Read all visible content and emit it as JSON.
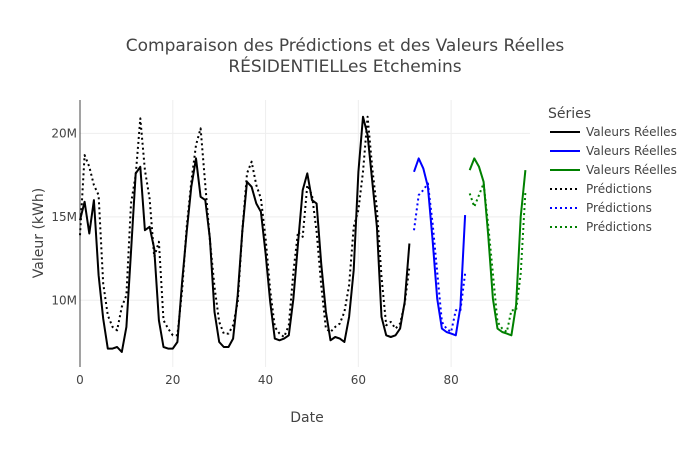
{
  "chart_data": {
    "type": "line",
    "title_line1": "Comparaison des Prédictions et des Valeurs Réelles",
    "title_line2": "RÉSIDENTIELLes Etchemins",
    "xlabel": "Date",
    "ylabel": "Valeur (kWh)",
    "xlim": [
      0,
      97
    ],
    "ylim": [
      6000000,
      22000000
    ],
    "x_ticks": [
      0,
      20,
      40,
      60,
      80
    ],
    "x_tick_labels": [
      "0",
      "20",
      "40",
      "60",
      "80"
    ],
    "y_ticks": [
      10000000,
      15000000,
      20000000
    ],
    "y_tick_labels": [
      "10M",
      "15M",
      "20M"
    ],
    "grid": true,
    "legend_title": "Séries",
    "legend_position": "right",
    "series": [
      {
        "name": "Valeurs Réelles",
        "color": "#000000",
        "dash": "solid",
        "x_start": 0,
        "values": [
          14800000,
          15900000,
          14000000,
          16000000,
          11500000,
          8900000,
          7100000,
          7100000,
          7200000,
          6900000,
          8400000,
          12900000,
          17600000,
          18000000,
          14200000,
          14400000,
          13100000,
          8800000,
          7200000,
          7100000,
          7100000,
          7500000,
          11100000,
          14100000,
          16800000,
          18500000,
          16200000,
          16000000,
          13700000,
          9300000,
          7500000,
          7200000,
          7200000,
          7700000,
          10300000,
          14200000,
          17100000,
          16800000,
          15800000,
          15300000,
          12800000,
          9900000,
          7700000,
          7600000,
          7700000,
          7900000,
          10100000,
          13400000,
          16600000,
          17600000,
          16000000,
          15800000,
          12200000,
          9300000,
          7600000,
          7800000,
          7700000,
          7500000,
          9000000,
          11800000,
          17700000,
          21000000,
          19900000,
          17100000,
          14400000,
          9000000,
          7900000,
          7800000,
          7900000,
          8300000,
          9900000,
          13400000
        ]
      },
      {
        "name": "Valeurs Réelles",
        "color": "#0000ff",
        "dash": "solid",
        "x_start": 72,
        "values": [
          17700000,
          18500000,
          17900000,
          16800000,
          13600000,
          10100000,
          8300000,
          8100000,
          8000000,
          7900000,
          9600000,
          15100000
        ]
      },
      {
        "name": "Valeurs Réelles",
        "color": "#008000",
        "dash": "solid",
        "x_start": 84,
        "values": [
          17800000,
          18500000,
          18000000,
          17100000,
          13900000,
          10100000,
          8300000,
          8100000,
          8000000,
          7900000,
          9700000,
          15000000,
          17800000
        ]
      },
      {
        "name": "Prédictions",
        "color": "#000000",
        "dash": "dot",
        "x_start": 0,
        "values": [
          13900000,
          18700000,
          18000000,
          16900000,
          16300000,
          11000000,
          9100000,
          8400000,
          8200000,
          9600000,
          10300000,
          15800000,
          17500000,
          20900000,
          17800000,
          16100000,
          12600000,
          13500000,
          8800000,
          8300000,
          7900000,
          7900000,
          10600000,
          14400000,
          17100000,
          19300000,
          20300000,
          16900000,
          13600000,
          10800000,
          8700000,
          8000000,
          8000000,
          8500000,
          9900000,
          14200000,
          17600000,
          18300000,
          16900000,
          16100000,
          13700000,
          10600000,
          8400000,
          8000000,
          7800000,
          8500000,
          11700000,
          14100000,
          13800000,
          16900000,
          16300000,
          14100000,
          10900000,
          8300000,
          8100000,
          8400000,
          8600000,
          9300000,
          10900000,
          14400000,
          15400000,
          17700000,
          21000000,
          17900000,
          15500000,
          11400000,
          8500000,
          8700000,
          8300000,
          8600000,
          9800000,
          12000000
        ]
      },
      {
        "name": "Prédictions",
        "color": "#0000ff",
        "dash": "dot",
        "x_start": 72,
        "values": [
          14200000,
          16300000,
          16600000,
          17000000,
          14600000,
          11700000,
          8700000,
          8300000,
          8100000,
          9400000,
          9400000,
          11600000
        ]
      },
      {
        "name": "Prédictions",
        "color": "#008000",
        "dash": "dot",
        "x_start": 84,
        "values": [
          16400000,
          15600000,
          16300000,
          17000000,
          14500000,
          11600000,
          8700000,
          8300000,
          8100000,
          9400000,
          9400000,
          11600000,
          16500000
        ]
      }
    ]
  }
}
